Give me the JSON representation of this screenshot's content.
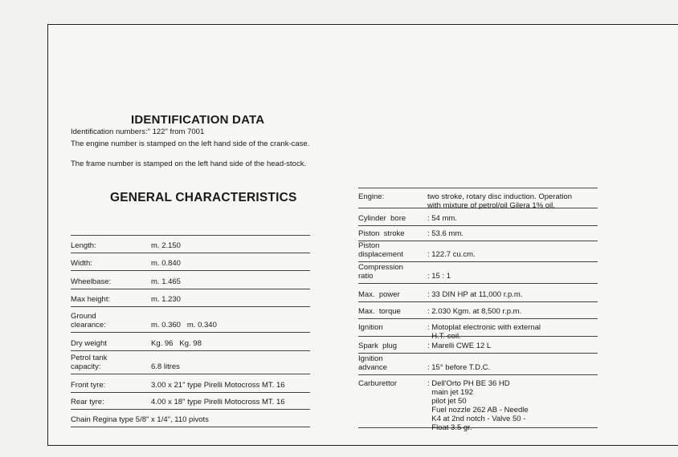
{
  "identification": {
    "title": "IDENTIFICATION DATA",
    "numbers": "Identification numbers:\" 122\" from 7001",
    "engine_number": "The engine number is stamped on the left hand side of the crank-case.",
    "frame_number": "The frame number is stamped on the left hand side of the head-stock."
  },
  "general": {
    "title": "GENERAL CHARACTERISTICS",
    "rows": [
      {
        "label": "Length:",
        "value": "m. 2.150"
      },
      {
        "label": "Width:",
        "value": "m. 0.840"
      },
      {
        "label": "Wheelbase:",
        "value": "m. 1.465"
      },
      {
        "label": "Max height:",
        "value": "m. 1.230"
      },
      {
        "label": "Ground\nclearance:",
        "value": "m. 0.360   m. 0.340"
      },
      {
        "label": "Dry weight",
        "value": "Kg. 96   Kg. 98"
      },
      {
        "label": "Petrol tank\ncapacity:",
        "value": "6.8 litres"
      },
      {
        "label": "Front tyre:",
        "value": "3.00 x 21\" type Pirelli Motocross MT. 16"
      },
      {
        "label": "Rear tyre:",
        "value": "4.00 x 18\" type Pirelli Motocross MT. 16"
      },
      {
        "label": "Chain Regina type 5/8\" x 1/4\", 110 pivots",
        "value": ""
      }
    ]
  },
  "specs": {
    "rows": [
      {
        "label": "Engine:",
        "value": "two stroke, rotary disc induction. Operation\nwith mixture of petrol/oil Gilera 1% oil."
      },
      {
        "label": "Cylinder  bore",
        "value": ": 54 mm."
      },
      {
        "label": "Piston  stroke",
        "value": ": 53.6 mm."
      },
      {
        "label": "Piston\ndisplacement",
        "value": ": 122.7 cu.cm."
      },
      {
        "label": "Compression\nratio",
        "value": ": 15 : 1"
      },
      {
        "label": "Max.  power",
        "value": ": 33 DIN HP at 11,000 r.p.m."
      },
      {
        "label": "Max.  torque",
        "value": ": 2.030 Kgm. at 8,500 r.p.m."
      },
      {
        "label": "Ignition",
        "value": ": Motoplat electronic with external\n  H.T. coil."
      },
      {
        "label": "Spark  plug",
        "value": ": Marelli CWE 12 L"
      },
      {
        "label": "Ignition\nadvance",
        "value": ": 15° before T.D.C."
      },
      {
        "label": "Carburettor",
        "value": ": Dell'Orto PH BE 36 HD\n  main jet 192\n  pilot jet 50\n  Fuel nozzle 262 AB - Needle\n  K4 at 2nd notch - Valve 50 -\n  Float 3.5 gr."
      }
    ]
  }
}
